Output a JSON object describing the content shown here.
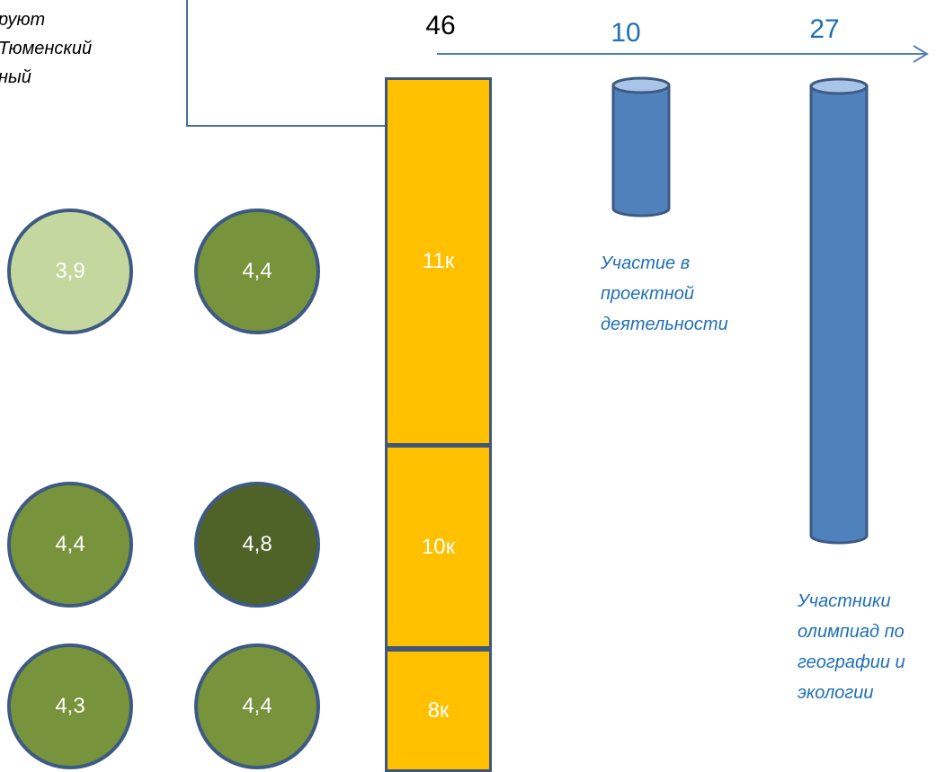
{
  "caption": {
    "lines": [
      "руют",
      "Тюменский",
      "ный"
    ]
  },
  "top_numbers": {
    "bar_total": "46",
    "project": "10",
    "olympiad": "27"
  },
  "bar_segments": [
    {
      "label": "11к"
    },
    {
      "label": "10к"
    },
    {
      "label": "8к"
    }
  ],
  "circles": [
    {
      "value": "3,9",
      "color": "#c4d79f"
    },
    {
      "value": "4,4",
      "color": "#77933c"
    },
    {
      "value": "4,4",
      "color": "#77933c"
    },
    {
      "value": "4,8",
      "color": "#4f6228"
    },
    {
      "value": "4,3",
      "color": "#77933c"
    },
    {
      "value": "4,4",
      "color": "#77933c"
    }
  ],
  "labels": {
    "project": [
      "Участие в",
      "проектной",
      "деятельности"
    ],
    "olympiad": [
      "Участники",
      "олимпиад по",
      "географии и",
      "экологии"
    ]
  },
  "colors": {
    "bar": "#ffc000",
    "cylinder": "#4f81bd",
    "outline": "#41577a",
    "accent_text": "#1f6fb5"
  }
}
